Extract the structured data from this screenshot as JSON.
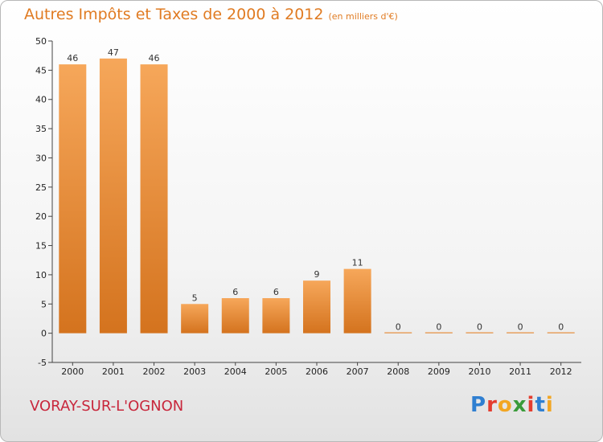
{
  "chart_data": {
    "type": "bar",
    "title": "Autres Impôts et Taxes de 2000 à 2012",
    "unit_note": "(en milliers d'€)",
    "categories": [
      "2000",
      "2001",
      "2002",
      "2003",
      "2004",
      "2005",
      "2006",
      "2007",
      "2008",
      "2009",
      "2010",
      "2011",
      "2012"
    ],
    "values": [
      46,
      47,
      46,
      5,
      6,
      6,
      9,
      11,
      0,
      0,
      0,
      0,
      0
    ],
    "data_labels": [
      "46",
      "47",
      "46",
      "5",
      "6",
      "6",
      "9",
      "11",
      "0",
      "0",
      "0",
      "0",
      "0"
    ],
    "yticks": [
      -5,
      0,
      5,
      10,
      15,
      20,
      25,
      30,
      35,
      40,
      45,
      50
    ],
    "ytick_labels": [
      "-5",
      "0",
      "5",
      "10",
      "15",
      "20",
      "25",
      "30",
      "35",
      "40",
      "45",
      "50"
    ],
    "ylim": [
      -5,
      50
    ],
    "grid": false,
    "bar_color": "#e8893a"
  },
  "footer": {
    "commune": "VORAY-SUR-L'OGNON",
    "logo": [
      "P",
      "r",
      "o",
      "x",
      "i",
      "t",
      "i"
    ],
    "logo_colors": [
      "#2f7fd1",
      "#e43d2f",
      "#f2a623",
      "#3a9b3a",
      "#e43d2f",
      "#2f7fd1",
      "#f2a623"
    ]
  }
}
